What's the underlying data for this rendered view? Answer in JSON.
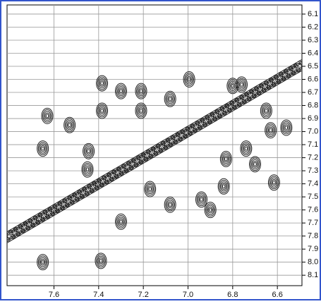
{
  "chart_data": {
    "type": "contour",
    "xlim": [
      7.81,
      6.49
    ],
    "ylim": [
      6.03,
      8.18
    ],
    "xticks": [
      7.6,
      7.4,
      7.2,
      {
        "value": 7,
        "label": "7.0"
      },
      6.8,
      6.6
    ],
    "yticks": [
      6.1,
      6.2,
      6.3,
      6.4,
      6.5,
      6.6,
      6.7,
      6.8,
      6.9,
      {
        "value": 7,
        "label": "7.0"
      },
      7.1,
      7.2,
      7.3,
      7.4,
      7.5,
      7.6,
      7.7,
      7.8,
      7.9,
      {
        "value": 8,
        "label": "8.0"
      },
      8.1
    ],
    "grid": true,
    "color": "#222",
    "peaks": {
      "x": [
        7.385,
        7.385,
        7.3,
        7.21,
        7.21,
        6.995,
        7.08,
        6.8,
        6.76,
        6.65,
        6.63,
        6.56,
        7.53,
        7.63,
        7.445,
        7.65,
        7.45,
        6.83,
        6.74,
        6.7,
        6.615,
        7.17,
        7.08,
        6.94,
        6.9,
        6.84,
        7.65,
        7.39,
        7.3
      ],
      "y": [
        6.63,
        6.84,
        6.69,
        6.69,
        6.84,
        6.6,
        6.75,
        6.65,
        6.64,
        6.84,
        6.99,
        6.97,
        6.95,
        6.88,
        7.15,
        7.13,
        7.29,
        7.21,
        7.13,
        7.25,
        7.39,
        7.44,
        7.56,
        7.52,
        7.6,
        7.42,
        8.0,
        7.99,
        7.69
      ]
    }
  }
}
